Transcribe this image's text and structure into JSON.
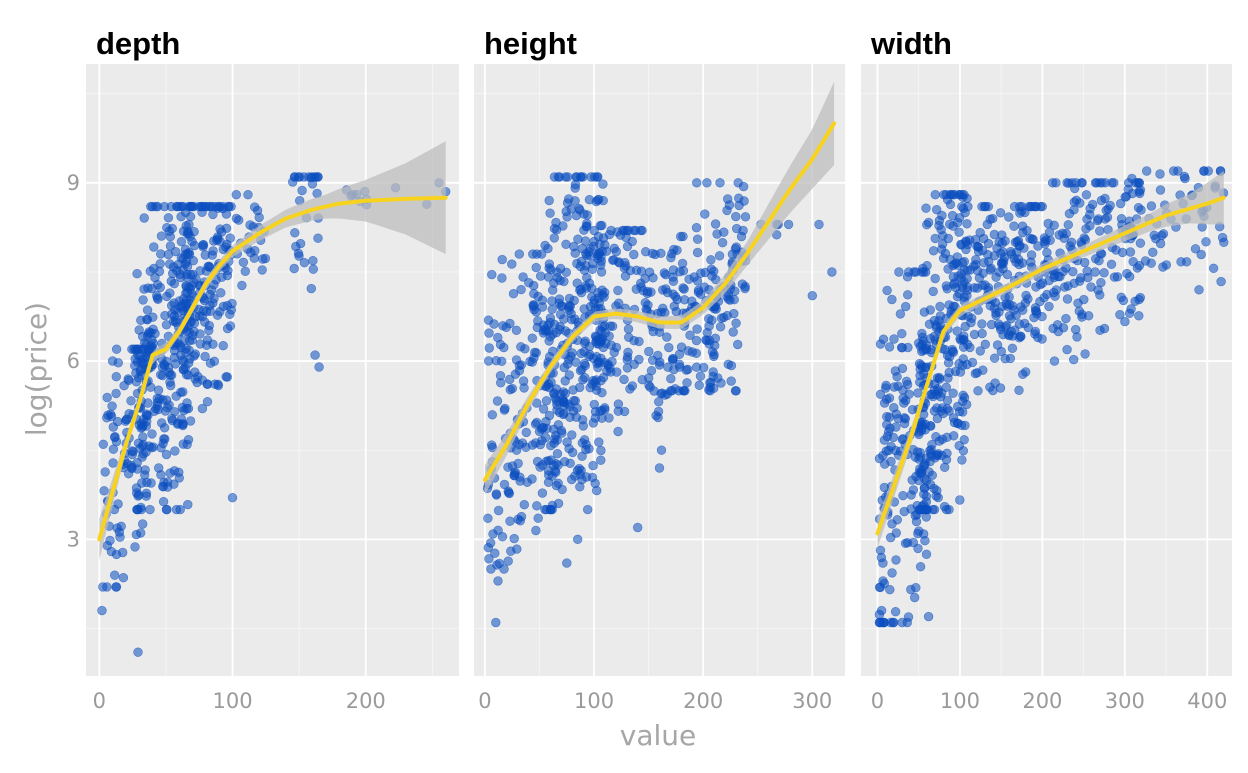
{
  "chart_data": {
    "type": "scatter",
    "xlabel": "value",
    "ylabel": "log(price)",
    "ylim": [
      0.7,
      11.0
    ],
    "yticks": [
      3,
      6,
      9
    ],
    "colors": {
      "points": "#0b4fc0",
      "smooth": "#f7d21e",
      "ribbon": "#bdbdbd",
      "panel": "#ebebeb",
      "grid": "#ffffff",
      "axis_text": "#9a9a9a"
    },
    "grid": true,
    "legend": "none",
    "panels": [
      {
        "name": "depth",
        "xlim": [
          -10,
          270
        ],
        "xticks": [
          0,
          100,
          200
        ],
        "smooth": [
          [
            0,
            3.0
          ],
          [
            10,
            3.8
          ],
          [
            20,
            4.6
          ],
          [
            30,
            5.3
          ],
          [
            40,
            6.1
          ],
          [
            50,
            6.2
          ],
          [
            60,
            6.5
          ],
          [
            70,
            6.9
          ],
          [
            80,
            7.3
          ],
          [
            90,
            7.6
          ],
          [
            100,
            7.85
          ],
          [
            120,
            8.15
          ],
          [
            140,
            8.4
          ],
          [
            160,
            8.55
          ],
          [
            180,
            8.65
          ],
          [
            200,
            8.7
          ],
          [
            230,
            8.73
          ],
          [
            260,
            8.75
          ]
        ],
        "ribbon_halfwidth": [
          [
            0,
            0.35
          ],
          [
            20,
            0.12
          ],
          [
            60,
            0.08
          ],
          [
            100,
            0.1
          ],
          [
            140,
            0.15
          ],
          [
            170,
            0.2
          ],
          [
            200,
            0.35
          ],
          [
            230,
            0.6
          ],
          [
            260,
            0.95
          ]
        ],
        "clusters": [
          {
            "x": [
              2,
              40
            ],
            "y": [
              2.2,
              6.2
            ],
            "n": 110
          },
          {
            "x": [
              28,
              70
            ],
            "y": [
              3.5,
              8.6
            ],
            "n": 260
          },
          {
            "x": [
              60,
              100
            ],
            "y": [
              5.2,
              8.6
            ],
            "n": 170
          },
          {
            "x": [
              100,
              125
            ],
            "y": [
              6.8,
              8.8
            ],
            "n": 25
          },
          {
            "x": [
              145,
              165
            ],
            "y": [
              6.5,
              9.1
            ],
            "n": 30
          },
          {
            "x": [
              180,
              260
            ],
            "y": [
              8.5,
              9.1
            ],
            "n": 10
          }
        ],
        "points": [
          [
            2,
            1.8
          ],
          [
            29,
            1.1
          ],
          [
            100,
            3.7
          ],
          [
            165,
            5.9
          ],
          [
            162,
            6.1
          ],
          [
            255,
            9.0
          ],
          [
            260,
            8.85
          ]
        ]
      },
      {
        "name": "height",
        "xlim": [
          -10,
          330
        ],
        "xticks": [
          0,
          100,
          200,
          300
        ],
        "smooth": [
          [
            0,
            4.0
          ],
          [
            20,
            4.6
          ],
          [
            40,
            5.3
          ],
          [
            60,
            5.9
          ],
          [
            80,
            6.4
          ],
          [
            100,
            6.75
          ],
          [
            120,
            6.8
          ],
          [
            140,
            6.75
          ],
          [
            160,
            6.65
          ],
          [
            180,
            6.65
          ],
          [
            200,
            6.9
          ],
          [
            220,
            7.3
          ],
          [
            240,
            7.8
          ],
          [
            260,
            8.35
          ],
          [
            280,
            8.9
          ],
          [
            300,
            9.4
          ],
          [
            320,
            10.0
          ]
        ],
        "ribbon_halfwidth": [
          [
            0,
            0.25
          ],
          [
            50,
            0.1
          ],
          [
            100,
            0.08
          ],
          [
            150,
            0.1
          ],
          [
            200,
            0.12
          ],
          [
            240,
            0.2
          ],
          [
            270,
            0.35
          ],
          [
            300,
            0.5
          ],
          [
            320,
            0.7
          ]
        ],
        "clusters": [
          {
            "x": [
              2,
              55
            ],
            "y": [
              2.5,
              7.8
            ],
            "n": 150
          },
          {
            "x": [
              55,
              110
            ],
            "y": [
              3.5,
              9.1
            ],
            "n": 320
          },
          {
            "x": [
              100,
              170
            ],
            "y": [
              4.5,
              8.2
            ],
            "n": 150
          },
          {
            "x": [
              170,
              240
            ],
            "y": [
              5.5,
              9.0
            ],
            "n": 170
          },
          {
            "x": [
              240,
              320
            ],
            "y": [
              7.2,
              8.3
            ],
            "n": 6
          }
        ],
        "points": [
          [
            10,
            1.6
          ],
          [
            12,
            2.3
          ],
          [
            85,
            3.0
          ],
          [
            75,
            2.6
          ],
          [
            140,
            3.2
          ],
          [
            160,
            4.2
          ],
          [
            300,
            7.1
          ],
          [
            318,
            7.5
          ]
        ]
      },
      {
        "name": "width",
        "xlim": [
          -20,
          430
        ],
        "xticks": [
          0,
          100,
          200,
          300,
          400
        ],
        "smooth": [
          [
            0,
            3.1
          ],
          [
            20,
            3.9
          ],
          [
            40,
            4.7
          ],
          [
            60,
            5.6
          ],
          [
            80,
            6.5
          ],
          [
            100,
            6.85
          ],
          [
            130,
            7.05
          ],
          [
            160,
            7.25
          ],
          [
            200,
            7.55
          ],
          [
            250,
            7.85
          ],
          [
            300,
            8.15
          ],
          [
            350,
            8.45
          ],
          [
            400,
            8.65
          ],
          [
            420,
            8.75
          ]
        ],
        "ribbon_halfwidth": [
          [
            0,
            0.25
          ],
          [
            60,
            0.1
          ],
          [
            150,
            0.08
          ],
          [
            250,
            0.1
          ],
          [
            330,
            0.15
          ],
          [
            380,
            0.25
          ],
          [
            420,
            0.45
          ]
        ],
        "clusters": [
          {
            "x": [
              2,
              60
            ],
            "y": [
              1.6,
              7.5
            ],
            "n": 170
          },
          {
            "x": [
              50,
              110
            ],
            "y": [
              3.5,
              8.8
            ],
            "n": 240
          },
          {
            "x": [
              100,
              200
            ],
            "y": [
              5.5,
              8.6
            ],
            "n": 210
          },
          {
            "x": [
              200,
              320
            ],
            "y": [
              6.0,
              9.0
            ],
            "n": 170
          },
          {
            "x": [
              300,
              420
            ],
            "y": [
              6.8,
              9.2
            ],
            "n": 60
          }
        ],
        "points": [
          [
            5,
            1.8
          ],
          [
            30,
            1.6
          ],
          [
            62,
            1.7
          ],
          [
            420,
            8.0
          ],
          [
            390,
            7.2
          ]
        ]
      }
    ]
  }
}
